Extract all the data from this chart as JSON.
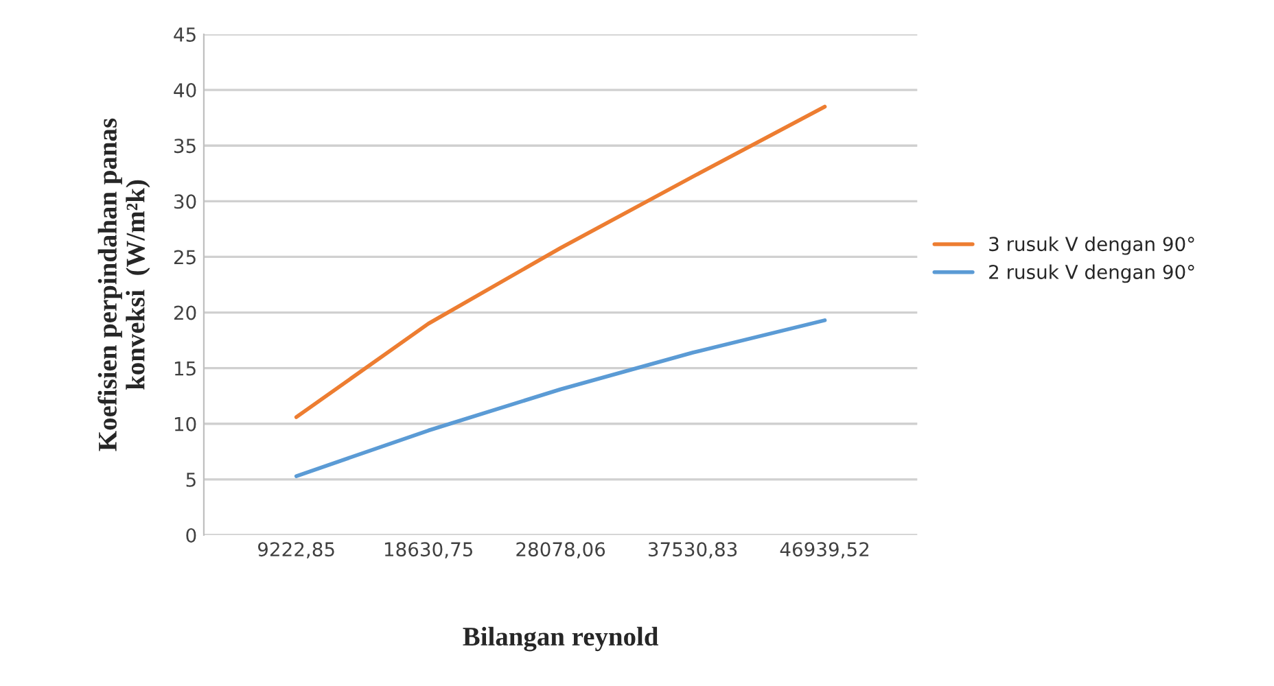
{
  "chart_data": {
    "type": "line",
    "xlabel": "Bilangan reynold",
    "ylabel": "Koefisien perpindahan panas\nkonveksi  (W/m²k)",
    "categories": [
      "9222,85",
      "18630,75",
      "28078,06",
      "37530,83",
      "46939,52"
    ],
    "series": [
      {
        "name": "3 rusuk V dengan 90°",
        "color": "#ed7d31",
        "values": [
          10.6,
          19.0,
          25.8,
          32.2,
          38.5
        ]
      },
      {
        "name": "2 rusuk V dengan 90°",
        "color": "#5b9bd5",
        "values": [
          5.3,
          9.4,
          13.1,
          16.4,
          19.3
        ]
      }
    ],
    "ylim": [
      0,
      45
    ],
    "yticks": [
      0,
      5,
      10,
      15,
      20,
      25,
      30,
      35,
      40,
      45
    ],
    "grid": "y",
    "legend": "right",
    "marker": "none",
    "line_style": "solid"
  }
}
